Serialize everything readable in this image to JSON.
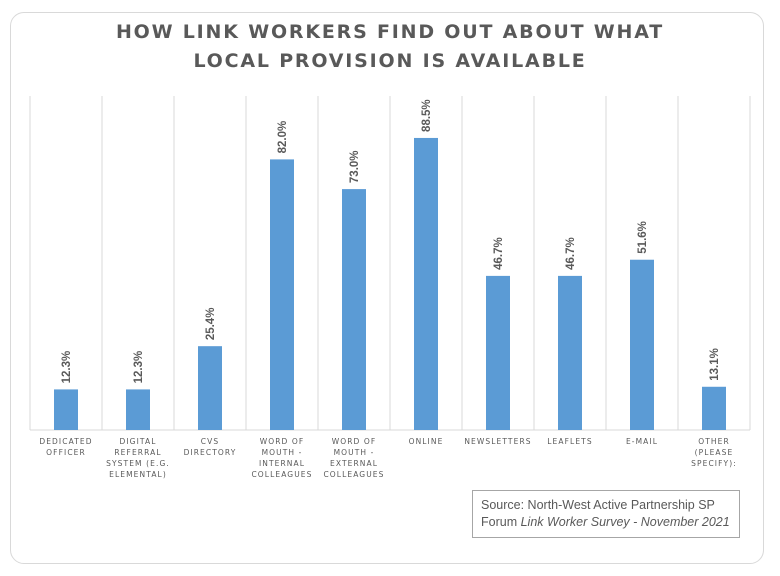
{
  "chart_data": {
    "type": "bar",
    "title_lines": [
      "HOW LINK WORKERS FIND OUT ABOUT WHAT",
      "LOCAL PROVISION IS AVAILABLE"
    ],
    "categories": [
      [
        "DEDICATED",
        "OFFICER"
      ],
      [
        "DIGITAL",
        "REFERRAL",
        "SYSTEM (E.G.",
        "ELEMENTAL)"
      ],
      [
        "CVS",
        "DIRECTORY"
      ],
      [
        "WORD OF",
        "MOUTH -",
        "INTERNAL",
        "COLLEAGUES"
      ],
      [
        "WORD OF",
        "MOUTH -",
        "EXTERNAL",
        "COLLEAGUES"
      ],
      [
        "ONLINE"
      ],
      [
        "NEWSLETTERS"
      ],
      [
        "LEAFLETS"
      ],
      [
        "E-MAIL"
      ],
      [
        "OTHER",
        "(PLEASE",
        "SPECIFY):"
      ]
    ],
    "values": [
      12.3,
      12.3,
      25.4,
      82.0,
      73.0,
      88.5,
      46.7,
      46.7,
      51.6,
      13.1
    ],
    "data_labels": [
      "12.3%",
      "12.3%",
      "25.4%",
      "82.0%",
      "73.0%",
      "88.5%",
      "46.7%",
      "46.7%",
      "51.6%",
      "13.1%"
    ],
    "ylim": [
      0,
      100
    ],
    "bar_color": "#5b9bd5",
    "grid": "vertical category dividers",
    "legend": "none"
  },
  "source": {
    "line1": "Source: North-West Active Partnership SP",
    "line2_prefix": "Forum ",
    "line2_italic": "Link Worker Survey - November 2021"
  }
}
